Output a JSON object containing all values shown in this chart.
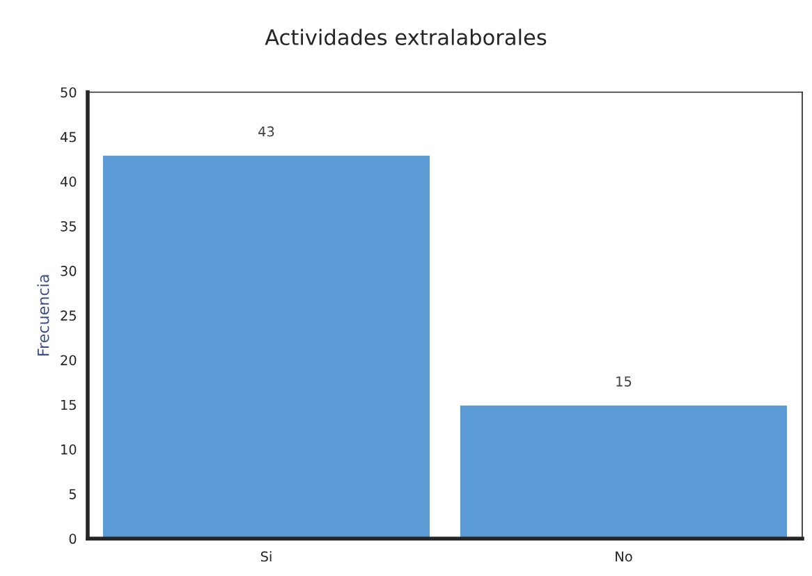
{
  "chart_data": {
    "type": "bar",
    "title": "Actividades extralaborales",
    "ylabel": "Frecuencia",
    "categories": [
      "Si",
      "No"
    ],
    "values": [
      43,
      15
    ],
    "color": "#5b9bd5",
    "ylim": [
      0,
      50
    ],
    "yticks": [
      0,
      5,
      10,
      15,
      20,
      25,
      30,
      35,
      40,
      45,
      50
    ],
    "grid": false,
    "data_labels": true
  }
}
